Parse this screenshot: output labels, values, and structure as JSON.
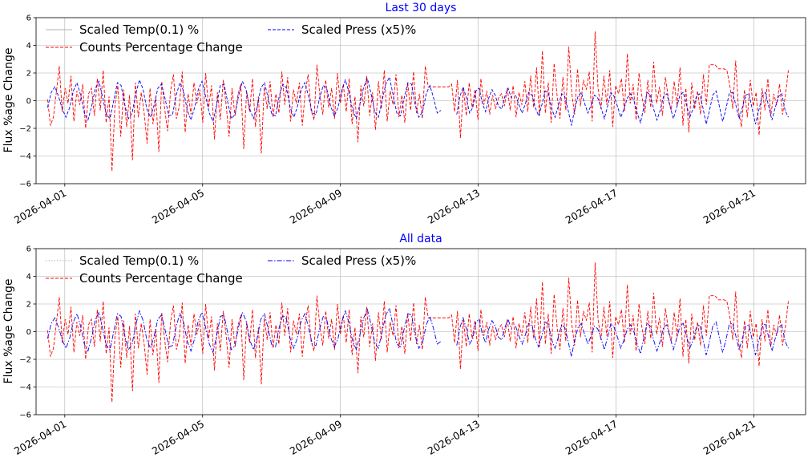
{
  "colors": {
    "counts": "#ff0000",
    "press": "#0000ff",
    "temp": "#b0b0b0",
    "grid": "#b0b0b0",
    "title": "#0000ff"
  },
  "chart_data": [
    {
      "type": "line",
      "title": "Last 30 days",
      "ylabel": "Flux %age Change",
      "xlabel": "",
      "ylim": [
        -6,
        6
      ],
      "yticks": [
        -6,
        -4,
        -2,
        0,
        2,
        4,
        6
      ],
      "xlim": [
        "2026-03-31T04:00",
        "2026-04-22T12:00"
      ],
      "xticks": [
        "2026-04-01",
        "2026-04-05",
        "2026-04-09",
        "2026-04-13",
        "2026-04-17",
        "2026-04-21"
      ],
      "grid": true,
      "legend_position": "top",
      "legend": [
        {
          "label": "Scaled Temp(0.1) %",
          "series": "temp",
          "style": "solid"
        },
        {
          "label": "Scaled Press (x5)%",
          "series": "press",
          "style": "dashed"
        },
        {
          "label": "Counts Percentage Change",
          "series": "counts",
          "style": "dashed"
        }
      ],
      "series": [
        {
          "name": "Counts Percentage Change",
          "x_start": "2026-03-31T12:00",
          "x_end": "2026-04-22T00:00",
          "values": [
            0.1,
            -1.8,
            -1.2,
            0.6,
            2.5,
            -0.8,
            0.9,
            -0.2,
            1.8,
            -1.5,
            0.7,
            -0.3,
            1.2,
            -2.0,
            0.5,
            0.9,
            -1.1,
            1.6,
            -0.7,
            2.2,
            -1.6,
            0.3,
            -5.1,
            -0.4,
            1.1,
            -2.6,
            0.8,
            -1.9,
            0.4,
            -4.3,
            1.3,
            -1.2,
            0.6,
            -0.9,
            -3.1,
            0.9,
            -1.7,
            0.2,
            -3.7,
            1.4,
            -0.6,
            -2.2,
            0.7,
            1.9,
            -1.3,
            -0.4,
            2.1,
            -2.3,
            0.5,
            -1.0,
            1.3,
            -0.2,
            0.8,
            -1.6,
            2.0,
            -0.5,
            1.1,
            -2.8,
            0.6,
            -1.4,
            1.5,
            -0.3,
            -2.6,
            0.9,
            -1.1,
            0.4,
            1.2,
            -3.5,
            0.7,
            -0.8,
            1.6,
            -1.9,
            0.3,
            -3.8,
            1.0,
            -0.6,
            1.4,
            -1.2,
            0.5,
            -0.9,
            2.1,
            -0.3,
            1.7,
            -1.5,
            0.8,
            -0.2,
            1.3,
            -1.8,
            0.6,
            1.9,
            -0.7,
            -1.4,
            2.6,
            0.4,
            -1.0,
            1.5,
            -0.5,
            0.9,
            -1.3,
            2.0,
            -0.2,
            1.2,
            -0.8,
            1.6,
            -1.7,
            0.3,
            -3.0,
            1.1,
            -0.4,
            1.8,
            -1.1,
            0.6,
            -2.1,
            1.4,
            -0.6,
            2.2,
            -1.5,
            0.7,
            -0.3,
            1.9,
            -1.2,
            0.4,
            -1.6,
            1.3,
            -0.7,
            2.1,
            -0.9,
            0.5,
            -1.3,
            2.5,
            1.0,
            1.0,
            1.0,
            1.0,
            1.0,
            1.0,
            1.0,
            1.0,
            1.2,
            -0.8,
            1.5,
            -2.7,
            0.9,
            -1.1,
            1.3,
            -0.5,
            0.8,
            -1.4,
            1.6,
            -0.3,
            0.7,
            -1.0,
            0.4,
            -0.6,
            0.2,
            0.5,
            -0.4,
            0.9,
            -0.7,
            1.1,
            -1.2,
            0.6,
            -0.3,
            1.4,
            -0.8,
            1.8,
            -0.5,
            2.4,
            -1.1,
            3.6,
            -0.9,
            1.3,
            -1.6,
            2.7,
            0.4,
            -1.3,
            1.7,
            -0.7,
            3.9,
            0.6,
            -1.0,
            2.3,
            -0.4,
            1.5,
            0.8,
            2.1,
            -1.5,
            5.0,
            0.9,
            -0.6,
            1.8,
            -0.3,
            2.2,
            -1.9,
            1.1,
            0.5,
            1.6,
            -0.8,
            3.4,
            -0.2,
            1.2,
            -1.4,
            2.0,
            0.3,
            -0.9,
            1.5,
            -0.5,
            2.8,
            -0.2,
            1.0,
            -1.1,
            1.7,
            0.2,
            -0.7,
            1.4,
            -0.4,
            2.4,
            -1.8,
            0.9,
            -2.3,
            1.3,
            -0.6,
            0.7,
            -1.0,
            1.9,
            -0.3,
            2.6,
            2.6,
            2.6,
            2.3,
            2.3,
            2.3,
            2.2,
            1.1,
            -0.6,
            2.9,
            -0.8,
            -1.9,
            0.8,
            -1.2,
            1.5,
            -0.4,
            0.6,
            -2.5,
            0.9,
            -0.7,
            1.6,
            -1.1,
            0.5,
            -0.3,
            1.2,
            -1.0,
            0.4,
            2.2
          ]
        },
        {
          "name": "Scaled Press (x5)%",
          "segments": [
            {
              "x_start": "2026-03-31T12:00",
              "x_end": "2026-04-11T22:00",
              "values": [
                -0.5,
                0.6,
                1.0,
                0.3,
                -0.6,
                -1.2,
                -0.5,
                0.7,
                1.3,
                0.4,
                -0.9,
                -1.4,
                -0.4,
                0.9,
                1.4,
                0.2,
                -1.0,
                -1.3,
                0.0,
                1.3,
                1.1,
                -0.3,
                -1.3,
                -0.9,
                0.5,
                1.5,
                0.8,
                -0.6,
                -1.2,
                -0.3,
                0.9,
                1.2,
                0.1,
                -1.1,
                -1.0,
                0.4,
                1.3,
                0.7,
                -0.7,
                -1.4,
                -0.5,
                0.8,
                1.4,
                0.3,
                -0.9,
                -1.5,
                -0.3,
                1.1,
                1.2,
                -0.1,
                -1.3,
                -1.0,
                0.4,
                1.4,
                0.8,
                -0.6,
                -1.3,
                -0.5,
                0.9,
                1.3,
                0.2,
                -1.0,
                -1.1,
                0.3,
                1.2,
                0.9,
                -0.5,
                -1.2,
                -0.4,
                0.8,
                1.3,
                0.3,
                -0.9,
                -1.0,
                0.2,
                1.1,
                0.8,
                -0.4,
                -1.1,
                -0.5,
                0.7,
                1.5,
                0.6,
                -0.7,
                -1.3,
                -0.2,
                1.0,
                1.6,
                0.5,
                -0.8,
                -1.2,
                0.0,
                1.2,
                1.7,
                0.4,
                -0.9,
                -1.1,
                0.2,
                1.3,
                1.2,
                -0.3,
                -1.2,
                -0.8,
                0.5,
                1.1,
                0.2,
                -0.9,
                -0.7
              ]
            },
            {
              "x_start": "2026-04-12T09:00",
              "x_end": "2026-04-13T23:00",
              "values": [
                -1.0,
                0.3,
                1.0,
                0.2,
                -0.9,
                -0.5,
                0.7,
                0.9,
                -0.2,
                -0.8,
                0.2,
                0.8,
                0.4,
                -0.4,
                -0.6,
                0.3,
                0.9,
                0.2
              ]
            },
            {
              "x_start": "2026-04-14T02:00",
              "x_end": "2026-04-22T00:00",
              "values": [
                0.4,
                -0.3,
                -0.9,
                -0.2,
                0.6,
                0.4,
                -0.5,
                -1.1,
                -0.3,
                0.7,
                0.5,
                -0.6,
                -1.2,
                -0.4,
                0.5,
                0.3,
                -0.7,
                -1.8,
                -0.6,
                0.3,
                0.6,
                -0.2,
                -0.9,
                -0.3,
                0.4,
                0.2,
                -0.5,
                -1.3,
                -0.4,
                0.6,
                0.3,
                -0.4,
                -1.2,
                -0.6,
                0.2,
                0.5,
                0.0,
                -0.9,
                -1.6,
                -0.5,
                0.6,
                0.4,
                -0.6,
                -1.4,
                -0.7,
                0.3,
                0.5,
                -0.4,
                -1.3,
                -0.5,
                0.4,
                0.6,
                -0.3,
                -1.2,
                -0.6,
                0.3,
                0.5,
                -0.5,
                -1.7,
                -0.7,
                0.4,
                0.7,
                -0.4,
                -1.5,
                -0.6,
                0.5,
                0.6,
                -0.3,
                -1.3,
                -0.5,
                0.4,
                0.5,
                -0.6,
                -1.7,
                -0.7,
                0.3,
                0.6,
                -0.4,
                -1.4,
                -0.5,
                0.3,
                0.5,
                -0.7,
                -1.2
              ]
            }
          ]
        },
        {
          "name": "Scaled Temp(0.1) %",
          "segments": []
        }
      ]
    },
    {
      "type": "line",
      "title": "All data",
      "ylabel": "Flux %age Change",
      "xlabel": "",
      "ylim": [
        -6,
        6
      ],
      "yticks": [
        -6,
        -4,
        -2,
        0,
        2,
        4,
        6
      ],
      "xlim": [
        "2026-03-31T04:00",
        "2026-04-22T12:00"
      ],
      "xticks": [
        "2026-04-01",
        "2026-04-05",
        "2026-04-09",
        "2026-04-13",
        "2026-04-17",
        "2026-04-21"
      ],
      "grid": true,
      "legend_position": "top",
      "legend": [
        {
          "label": "Scaled Temp(0.1) %",
          "series": "temp",
          "style": "dotted"
        },
        {
          "label": "Scaled Press (x5)%",
          "series": "press",
          "style": "dashdot"
        },
        {
          "label": "Counts Percentage Change",
          "series": "counts",
          "style": "dashed"
        }
      ],
      "same_data_as_panel": 0
    }
  ]
}
